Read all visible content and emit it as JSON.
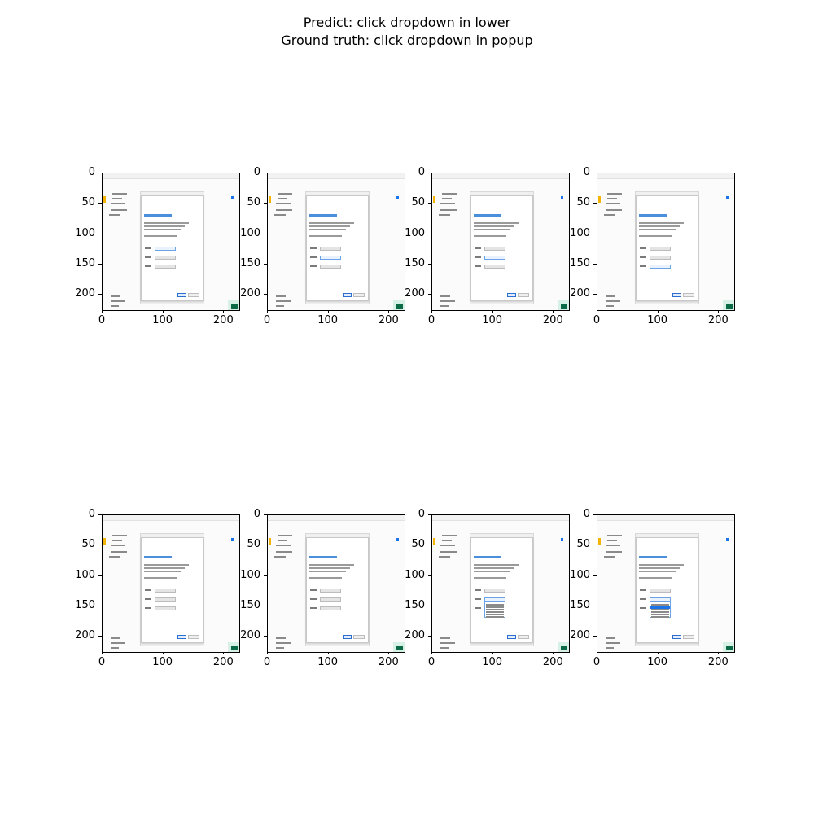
{
  "figure": {
    "line1": "Predict: click dropdown in lower",
    "line2": "Ground truth: click dropdown in popup"
  },
  "axes": {
    "y_ticks": [
      "0",
      "50",
      "100",
      "150",
      "200"
    ],
    "x_ticks": [
      "0",
      "100",
      "200"
    ]
  },
  "panels": [
    {
      "state": "combo-1-active"
    },
    {
      "state": "combo-2-active"
    },
    {
      "state": "combo-2-caret"
    },
    {
      "state": "combo-3-active"
    },
    {
      "state": "none"
    },
    {
      "state": "none"
    },
    {
      "state": "dropdown-open"
    },
    {
      "state": "dropdown-open-selected"
    }
  ],
  "colors": {
    "accent": "#1a73e8",
    "dialog_title": "#4a8fdc",
    "side_accent": "#f4b400",
    "taskbar": "#0b6b46"
  }
}
